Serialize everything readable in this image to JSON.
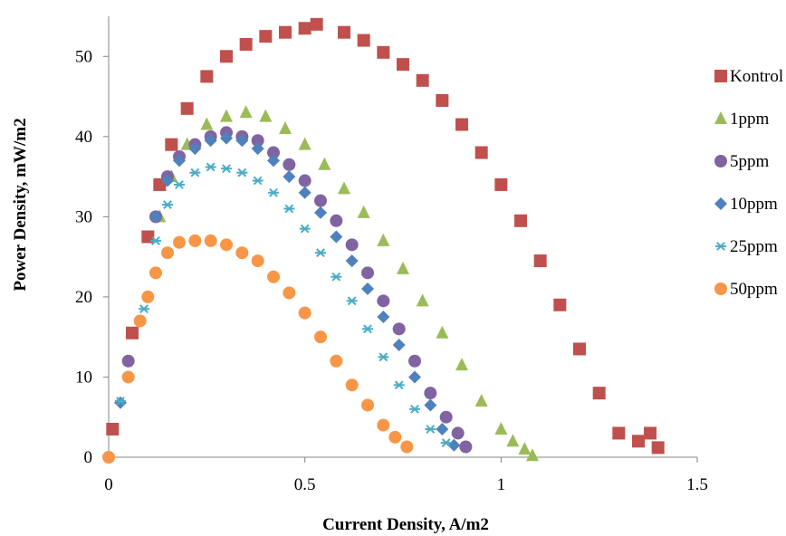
{
  "chart_data": {
    "type": "scatter",
    "title": "",
    "xlabel": "Current Density, A/m2",
    "ylabel": "Power Density, mW/m2",
    "xlim": [
      0,
      1.5
    ],
    "ylim": [
      0,
      55
    ],
    "xticks": [
      "0",
      "0.5",
      "1",
      "1.5"
    ],
    "yticks": [
      "0",
      "10",
      "20",
      "30",
      "40",
      "50"
    ],
    "grid": false,
    "legend_position": "right",
    "series": [
      {
        "name": "Kontrol",
        "color": "#C0504D",
        "marker": "square",
        "x": [
          0.01,
          0.06,
          0.1,
          0.13,
          0.16,
          0.2,
          0.25,
          0.3,
          0.35,
          0.4,
          0.45,
          0.5,
          0.53,
          0.6,
          0.65,
          0.7,
          0.75,
          0.8,
          0.85,
          0.9,
          0.95,
          1.0,
          1.05,
          1.1,
          1.15,
          1.2,
          1.25,
          1.3,
          1.35,
          1.38,
          1.4
        ],
        "y": [
          3.5,
          15.5,
          27.5,
          34.0,
          39.0,
          43.5,
          47.5,
          50.0,
          51.5,
          52.5,
          53.0,
          53.5,
          54.0,
          53.0,
          52.0,
          50.5,
          49.0,
          47.0,
          44.5,
          41.5,
          38.0,
          34.0,
          29.5,
          24.5,
          19.0,
          13.5,
          8.0,
          3.0,
          2.0,
          3.0,
          1.2
        ]
      },
      {
        "name": "1ppm",
        "color": "#9BBB59",
        "marker": "triangle",
        "x": [
          0.13,
          0.16,
          0.2,
          0.25,
          0.3,
          0.35,
          0.4,
          0.45,
          0.5,
          0.55,
          0.6,
          0.65,
          0.7,
          0.75,
          0.8,
          0.85,
          0.9,
          0.95,
          1.0,
          1.03,
          1.06,
          1.08
        ],
        "y": [
          30.0,
          35.0,
          39.0,
          41.5,
          42.5,
          43.0,
          42.5,
          41.0,
          39.0,
          36.5,
          33.5,
          30.5,
          27.0,
          23.5,
          19.5,
          15.5,
          11.5,
          7.0,
          3.5,
          2.0,
          1.0,
          0.2
        ]
      },
      {
        "name": "5ppm",
        "color": "#8064A2",
        "marker": "circle",
        "x": [
          0.05,
          0.12,
          0.15,
          0.18,
          0.22,
          0.26,
          0.3,
          0.34,
          0.38,
          0.42,
          0.46,
          0.5,
          0.54,
          0.58,
          0.62,
          0.66,
          0.7,
          0.74,
          0.78,
          0.82,
          0.86,
          0.89,
          0.91
        ],
        "y": [
          12.0,
          30.0,
          35.0,
          37.5,
          39.0,
          40.0,
          40.5,
          40.0,
          39.5,
          38.0,
          36.5,
          34.5,
          32.0,
          29.5,
          26.5,
          23.0,
          19.5,
          16.0,
          12.0,
          8.0,
          5.0,
          3.0,
          1.3
        ]
      },
      {
        "name": "10ppm",
        "color": "#4F81BD",
        "marker": "diamond",
        "x": [
          0.03,
          0.12,
          0.15,
          0.18,
          0.22,
          0.26,
          0.3,
          0.34,
          0.38,
          0.42,
          0.46,
          0.5,
          0.54,
          0.58,
          0.62,
          0.66,
          0.7,
          0.74,
          0.78,
          0.82,
          0.85,
          0.88
        ],
        "y": [
          6.8,
          30.0,
          34.5,
          37.0,
          38.5,
          39.5,
          39.8,
          39.5,
          38.5,
          37.0,
          35.0,
          33.0,
          30.5,
          27.5,
          24.5,
          21.0,
          17.5,
          14.0,
          10.0,
          6.5,
          3.5,
          1.5
        ]
      },
      {
        "name": "25ppm",
        "color": "#4BACC6",
        "marker": "star",
        "x": [
          0.03,
          0.09,
          0.12,
          0.15,
          0.18,
          0.22,
          0.26,
          0.3,
          0.34,
          0.38,
          0.42,
          0.46,
          0.5,
          0.54,
          0.58,
          0.62,
          0.66,
          0.7,
          0.74,
          0.78,
          0.82,
          0.86
        ],
        "y": [
          7.0,
          18.5,
          27.0,
          31.5,
          34.0,
          35.5,
          36.2,
          36.0,
          35.5,
          34.5,
          33.0,
          31.0,
          28.5,
          25.5,
          22.5,
          19.5,
          16.0,
          12.5,
          9.0,
          6.0,
          3.5,
          1.8
        ]
      },
      {
        "name": "50ppm",
        "color": "#F79646",
        "marker": "circle",
        "x": [
          0.0,
          0.05,
          0.08,
          0.1,
          0.12,
          0.15,
          0.18,
          0.22,
          0.26,
          0.3,
          0.34,
          0.38,
          0.42,
          0.46,
          0.5,
          0.54,
          0.58,
          0.62,
          0.66,
          0.7,
          0.73,
          0.76
        ],
        "y": [
          0.0,
          10.0,
          17.0,
          20.0,
          23.0,
          25.5,
          26.8,
          27.0,
          27.0,
          26.5,
          25.5,
          24.5,
          22.5,
          20.5,
          18.0,
          15.0,
          12.0,
          9.0,
          6.5,
          4.0,
          2.5,
          1.3
        ]
      }
    ]
  }
}
